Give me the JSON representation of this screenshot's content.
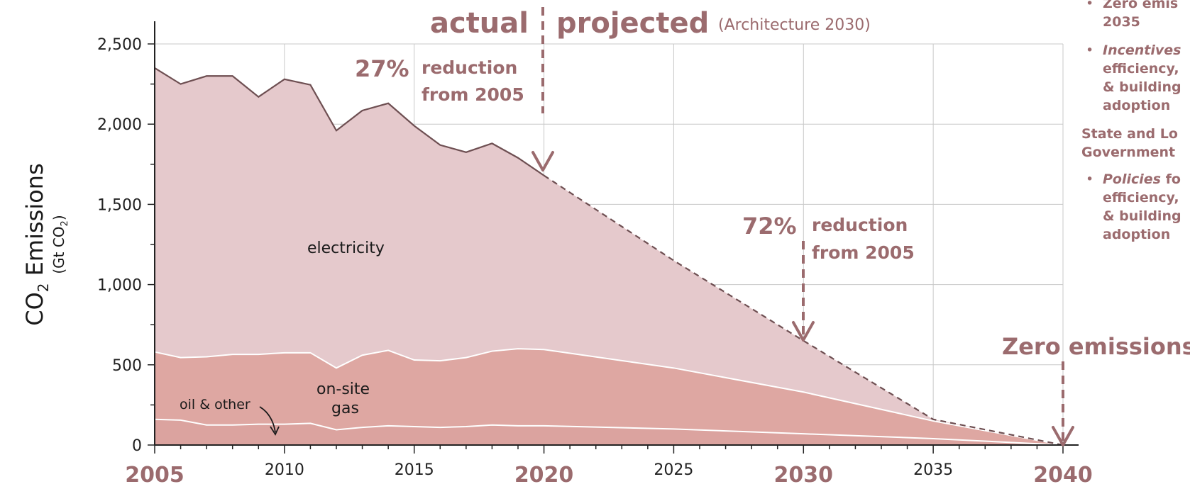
{
  "chart_data": {
    "type": "area",
    "ylabel_main": "CO",
    "ylabel_sub": "2",
    "ylabel_rest": " Emissions",
    "yunit_main": "(Gt CO",
    "yunit_sub": "2",
    "yunit_close": ")",
    "ylim": [
      0,
      2500
    ],
    "xlim": [
      2005,
      2040
    ],
    "y_ticks": [
      "0",
      "500",
      "1,000",
      "1,500",
      "2,000",
      "2,500"
    ],
    "y_tick_values": [
      0,
      500,
      1000,
      1500,
      2000,
      2500
    ],
    "x_ticks_small": [
      "2010",
      "2015",
      "2025",
      "2035"
    ],
    "x_ticks_big": [
      "2005",
      "2020",
      "2030",
      "2040"
    ],
    "x_years": [
      2005,
      2006,
      2007,
      2008,
      2009,
      2010,
      2011,
      2012,
      2013,
      2014,
      2015,
      2016,
      2017,
      2018,
      2019,
      2020,
      2025,
      2030,
      2035,
      2040
    ],
    "series": [
      {
        "name": "oil & other",
        "values": [
          160,
          155,
          125,
          125,
          130,
          130,
          135,
          95,
          110,
          120,
          115,
          110,
          115,
          125,
          120,
          120,
          100,
          70,
          40,
          0
        ]
      },
      {
        "name": "on-site gas",
        "values": [
          580,
          545,
          550,
          565,
          565,
          575,
          575,
          480,
          560,
          590,
          530,
          525,
          545,
          585,
          600,
          595,
          480,
          330,
          150,
          0
        ]
      },
      {
        "name": "electricity",
        "values": [
          2350,
          2250,
          2300,
          2300,
          2170,
          2280,
          2245,
          1960,
          2085,
          2130,
          1990,
          1870,
          1825,
          1880,
          1790,
          1680,
          1150,
          650,
          160,
          0
        ]
      }
    ],
    "projected_start": 2020,
    "colors": {
      "electricity": "#e5c9cc",
      "gas": "#dea7a2",
      "oil": "#dba39f",
      "line": "#6e4f52",
      "accent": "#9b6b6e"
    },
    "grid": true,
    "annotations": {
      "actual": "actual",
      "projected": "projected",
      "architecture": "(Architecture 2030)",
      "pct27": "27%",
      "red27_line1": "reduction",
      "red27_line2": "from 2005",
      "pct72": "72%",
      "red72_line1": "reduction",
      "red72_line2": "from 2005",
      "zero": "Zero emissions"
    },
    "region_labels": {
      "electricity": "electricity",
      "gas_line1": "on-site",
      "gas_line2": "gas",
      "oil": "oil & other"
    }
  },
  "sidebar": {
    "item1": {
      "bullet": "•",
      "text": "Zero emis\n2035"
    },
    "item2": {
      "bullet": "•",
      "text_italic": "Incentives",
      "text_rest": "\nefficiency,\n& building\nadoption"
    },
    "group": "State and Lo\nGovernment",
    "item3": {
      "bullet": "•",
      "text_italic": "Policies",
      "text_rest": " fo\nefficiency,\n& building\nadoption"
    }
  }
}
